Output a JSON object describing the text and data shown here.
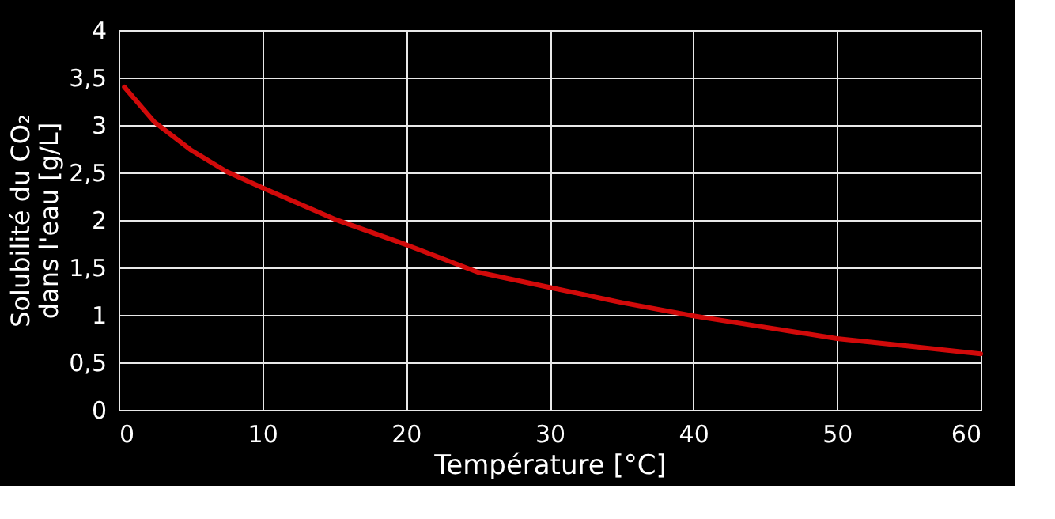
{
  "chart_data": {
    "type": "line",
    "xlabel": "Température [°C]",
    "ylabel": "Solubilité  du CO₂\ndans l'eau [g/L]",
    "x": [
      0.4,
      2.5,
      5,
      7.5,
      10,
      15,
      20,
      25,
      30,
      35,
      40,
      45,
      50,
      55,
      60
    ],
    "series": [
      {
        "color": "#d10a0a",
        "values": [
          3.4,
          3.03,
          2.74,
          2.51,
          2.34,
          2.01,
          1.74,
          1.45,
          1.29,
          1.13,
          0.99,
          0.87,
          0.75,
          0.67,
          0.59
        ]
      }
    ],
    "xlim": [
      0,
      60
    ],
    "xticks": [
      0,
      10,
      20,
      30,
      40,
      50,
      60
    ],
    "ylim": [
      0,
      4
    ],
    "yticks": [
      0,
      {
        "value": 0.5,
        "label": "0,5"
      },
      1,
      {
        "value": 1.5,
        "label": "1,5"
      },
      2,
      {
        "value": 2.5,
        "label": "2,5"
      },
      3,
      {
        "value": 3.5,
        "label": "3,5"
      },
      4
    ],
    "grid": true,
    "marker": "none",
    "line_style": "solid"
  }
}
